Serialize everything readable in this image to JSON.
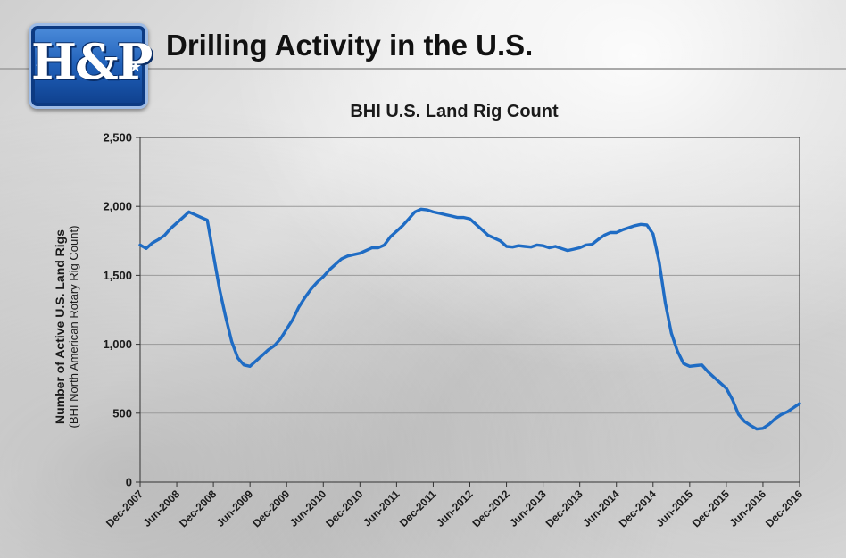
{
  "header": {
    "logo_text": "H&P",
    "logo_star_icon": "star-icon",
    "title": "Drilling Activity in the U.S."
  },
  "colors": {
    "series": "#1f6cc4",
    "grid": "#9a9a9a",
    "axis": "#333333",
    "logo_blue": "#1f5fb8"
  },
  "chart_data": {
    "type": "line",
    "title": "BHI U.S. Land Rig Count",
    "ylabel": "Number of Active U.S. Land Rigs",
    "ylabel_sub": "(BHI North American Rotary Rig Count)",
    "xlabel": "",
    "ylim": [
      0,
      2500
    ],
    "yticks": [
      0,
      500,
      1000,
      1500,
      2000,
      2500
    ],
    "ytick_labels": [
      "0",
      "500",
      "1,000",
      "1,500",
      "2,000",
      "2,500"
    ],
    "xlim": [
      "2007-12",
      "2016-12"
    ],
    "xtick_labels": [
      "Dec-2007",
      "Jun-2008",
      "Dec-2008",
      "Jun-2009",
      "Dec-2009",
      "Jun-2010",
      "Dec-2010",
      "Jun-2011",
      "Dec-2011",
      "Jun-2012",
      "Dec-2012",
      "Jun-2013",
      "Dec-2013",
      "Jun-2014",
      "Dec-2014",
      "Jun-2015",
      "Dec-2015",
      "Jun-2016",
      "Dec-2016"
    ],
    "grid": "horizontal",
    "legend": "none",
    "series": [
      {
        "points": [
          [
            "2007-12",
            1720
          ],
          [
            "2008-01",
            1695
          ],
          [
            "2008-02",
            1735
          ],
          [
            "2008-03",
            1760
          ],
          [
            "2008-04",
            1790
          ],
          [
            "2008-05",
            1840
          ],
          [
            "2008-06",
            1880
          ],
          [
            "2008-07",
            1920
          ],
          [
            "2008-08",
            1960
          ],
          [
            "2008-09",
            1940
          ],
          [
            "2008-10",
            1920
          ],
          [
            "2008-11",
            1900
          ],
          [
            "2008-12",
            1650
          ],
          [
            "2009-01",
            1400
          ],
          [
            "2009-02",
            1200
          ],
          [
            "2009-03",
            1020
          ],
          [
            "2009-04",
            900
          ],
          [
            "2009-05",
            850
          ],
          [
            "2009-06",
            840
          ],
          [
            "2009-07",
            880
          ],
          [
            "2009-08",
            920
          ],
          [
            "2009-09",
            960
          ],
          [
            "2009-10",
            990
          ],
          [
            "2009-11",
            1040
          ],
          [
            "2009-12",
            1110
          ],
          [
            "2010-01",
            1180
          ],
          [
            "2010-02",
            1270
          ],
          [
            "2010-03",
            1340
          ],
          [
            "2010-04",
            1400
          ],
          [
            "2010-05",
            1450
          ],
          [
            "2010-06",
            1490
          ],
          [
            "2010-07",
            1540
          ],
          [
            "2010-08",
            1580
          ],
          [
            "2010-09",
            1620
          ],
          [
            "2010-10",
            1640
          ],
          [
            "2010-11",
            1650
          ],
          [
            "2010-12",
            1660
          ],
          [
            "2011-01",
            1680
          ],
          [
            "2011-02",
            1700
          ],
          [
            "2011-03",
            1700
          ],
          [
            "2011-04",
            1720
          ],
          [
            "2011-05",
            1780
          ],
          [
            "2011-06",
            1820
          ],
          [
            "2011-07",
            1860
          ],
          [
            "2011-08",
            1910
          ],
          [
            "2011-09",
            1960
          ],
          [
            "2011-10",
            1980
          ],
          [
            "2011-11",
            1975
          ],
          [
            "2011-12",
            1960
          ],
          [
            "2012-01",
            1950
          ],
          [
            "2012-02",
            1940
          ],
          [
            "2012-03",
            1930
          ],
          [
            "2012-04",
            1920
          ],
          [
            "2012-05",
            1920
          ],
          [
            "2012-06",
            1910
          ],
          [
            "2012-07",
            1870
          ],
          [
            "2012-08",
            1830
          ],
          [
            "2012-09",
            1790
          ],
          [
            "2012-10",
            1770
          ],
          [
            "2012-11",
            1750
          ],
          [
            "2012-12",
            1710
          ],
          [
            "2013-01",
            1705
          ],
          [
            "2013-02",
            1715
          ],
          [
            "2013-03",
            1710
          ],
          [
            "2013-04",
            1705
          ],
          [
            "2013-05",
            1720
          ],
          [
            "2013-06",
            1715
          ],
          [
            "2013-07",
            1700
          ],
          [
            "2013-08",
            1710
          ],
          [
            "2013-09",
            1695
          ],
          [
            "2013-10",
            1680
          ],
          [
            "2013-11",
            1690
          ],
          [
            "2013-12",
            1700
          ],
          [
            "2014-01",
            1720
          ],
          [
            "2014-02",
            1725
          ],
          [
            "2014-03",
            1760
          ],
          [
            "2014-04",
            1790
          ],
          [
            "2014-05",
            1810
          ],
          [
            "2014-06",
            1810
          ],
          [
            "2014-07",
            1830
          ],
          [
            "2014-08",
            1845
          ],
          [
            "2014-09",
            1860
          ],
          [
            "2014-10",
            1870
          ],
          [
            "2014-11",
            1865
          ],
          [
            "2014-12",
            1800
          ],
          [
            "2015-01",
            1600
          ],
          [
            "2015-02",
            1300
          ],
          [
            "2015-03",
            1080
          ],
          [
            "2015-04",
            950
          ],
          [
            "2015-05",
            860
          ],
          [
            "2015-06",
            840
          ],
          [
            "2015-07",
            845
          ],
          [
            "2015-08",
            850
          ],
          [
            "2015-09",
            800
          ],
          [
            "2015-10",
            760
          ],
          [
            "2015-11",
            720
          ],
          [
            "2015-12",
            680
          ],
          [
            "2016-01",
            600
          ],
          [
            "2016-02",
            490
          ],
          [
            "2016-03",
            440
          ],
          [
            "2016-04",
            410
          ],
          [
            "2016-05",
            385
          ],
          [
            "2016-06",
            390
          ],
          [
            "2016-07",
            420
          ],
          [
            "2016-08",
            460
          ],
          [
            "2016-09",
            490
          ],
          [
            "2016-10",
            510
          ],
          [
            "2016-11",
            540
          ],
          [
            "2016-12",
            570
          ]
        ]
      }
    ]
  }
}
